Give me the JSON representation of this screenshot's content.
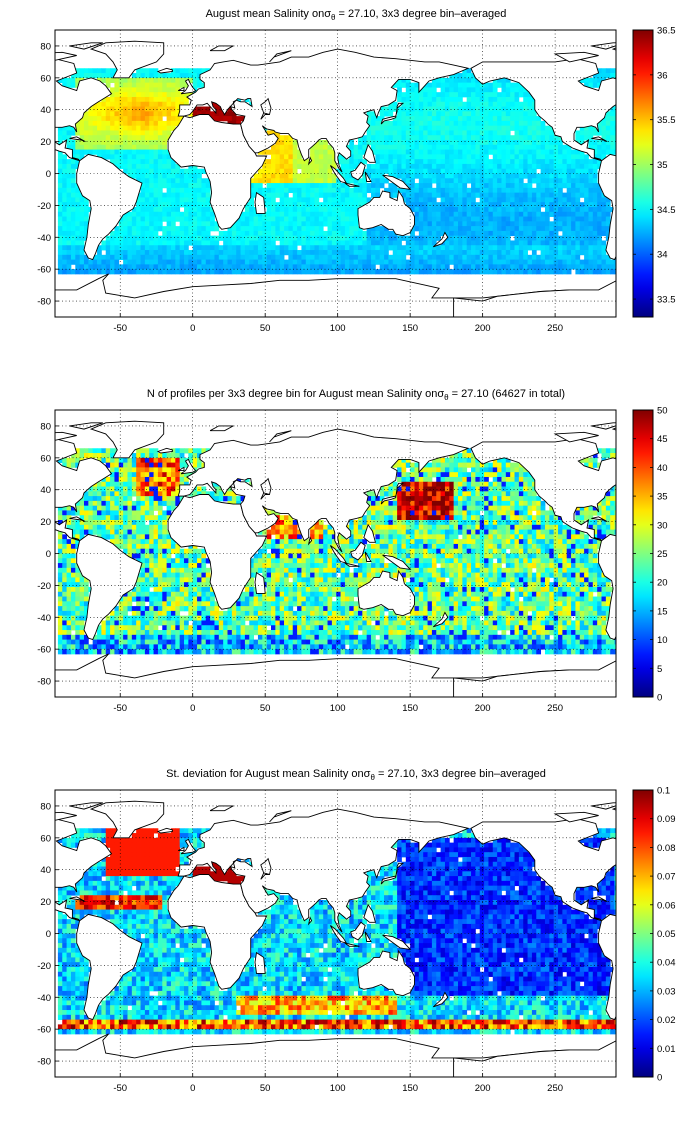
{
  "panels": [
    {
      "title_main": "August mean Salinity on",
      "title_sigma": "σ",
      "title_sub": "θ",
      "title_rest": " = 27.10, 3x3 degree bin–averaged",
      "colorbar_ticks": [
        "33.5",
        "34",
        "34.5",
        "35",
        "35.5",
        "36",
        "36.5"
      ],
      "colorbar_range": [
        33.3,
        36.5
      ]
    },
    {
      "title_main": "N of profiles per 3x3 degree bin for August mean Salinity on",
      "title_sigma": "σ",
      "title_sub": "θ",
      "title_rest": " = 27.10 (64627 in total)",
      "colorbar_ticks": [
        "0",
        "5",
        "10",
        "15",
        "20",
        "25",
        "30",
        "35",
        "40",
        "45",
        "50"
      ],
      "colorbar_range": [
        0,
        50
      ]
    },
    {
      "title_main": "St. deviation for August mean Salinity on",
      "title_sigma": "σ",
      "title_sub": "θ",
      "title_rest": " = 27.10, 3x3 degree bin–averaged",
      "colorbar_ticks": [
        "0",
        "0.01",
        "0.02",
        "0.03",
        "0.04",
        "0.05",
        "0.06",
        "0.07",
        "0.08",
        "0.09",
        "0.1"
      ],
      "colorbar_range": [
        0,
        0.1
      ]
    }
  ],
  "x_ticks": [
    "-50",
    "0",
    "50",
    "100",
    "150",
    "200",
    "250"
  ],
  "y_ticks": [
    "80",
    "60",
    "40",
    "20",
    "0",
    "-20",
    "-40",
    "-60",
    "-80"
  ],
  "map_extent": {
    "lon": [
      -95,
      292
    ],
    "lat": [
      -90,
      90
    ]
  },
  "colormap": "jet"
}
